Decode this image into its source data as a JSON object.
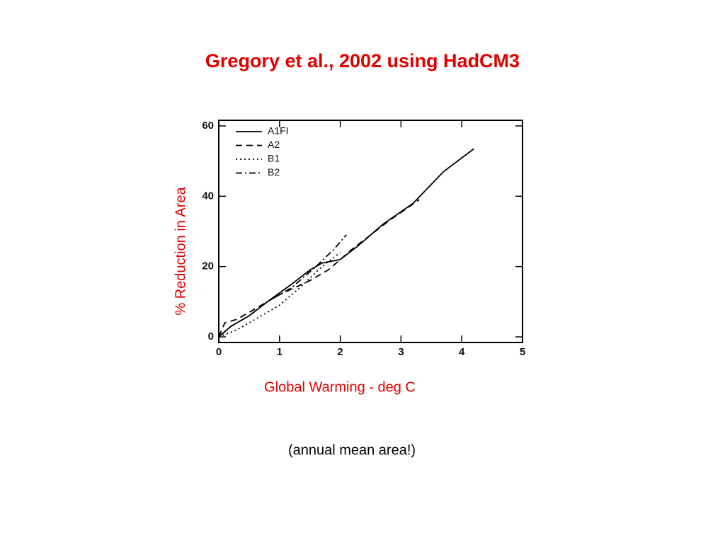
{
  "chart_data": {
    "type": "line",
    "title": "Gregory et al., 2002 using HadCM3",
    "xlabel": "Global Warming - deg C",
    "ylabel": "% Reduction in Area",
    "note": "(annual mean area!)",
    "xlim": [
      0,
      5
    ],
    "ylim": [
      -1.6,
      61.6
    ],
    "xticks": [
      0,
      1,
      2,
      3,
      4,
      5
    ],
    "yticks": [
      0,
      20,
      40,
      60
    ],
    "series": [
      {
        "name": "A1FI",
        "color": "#000000",
        "style": "solid",
        "x": [
          0,
          0.2,
          0.5,
          0.8,
          1.2,
          1.5,
          1.7,
          2.0,
          2.3,
          2.7,
          3.2,
          3.7,
          4.2
        ],
        "values": [
          0,
          3,
          6,
          10,
          15,
          19,
          21,
          22,
          26,
          32,
          38,
          47,
          53.5
        ]
      },
      {
        "name": "A2",
        "color": "#000000",
        "style": "dashed",
        "x": [
          0,
          0.1,
          0.3,
          0.6,
          1.0,
          1.5,
          1.8,
          2.2,
          2.8,
          3.3
        ],
        "values": [
          0,
          4,
          5,
          8,
          12,
          16,
          19,
          25,
          33,
          39
        ]
      },
      {
        "name": "B1",
        "color": "#000000",
        "style": "dotted",
        "x": [
          0,
          0.3,
          0.6,
          1.0,
          1.4,
          1.7,
          2.0
        ],
        "values": [
          0,
          2,
          5,
          9,
          15,
          20,
          24
        ]
      },
      {
        "name": "B2",
        "color": "#000000",
        "style": "dashdot",
        "x": [
          0,
          0.2,
          0.5,
          0.8,
          1.2,
          1.6,
          1.9,
          2.1
        ],
        "values": [
          0,
          3,
          6,
          10,
          14,
          20,
          25,
          29
        ]
      }
    ]
  }
}
